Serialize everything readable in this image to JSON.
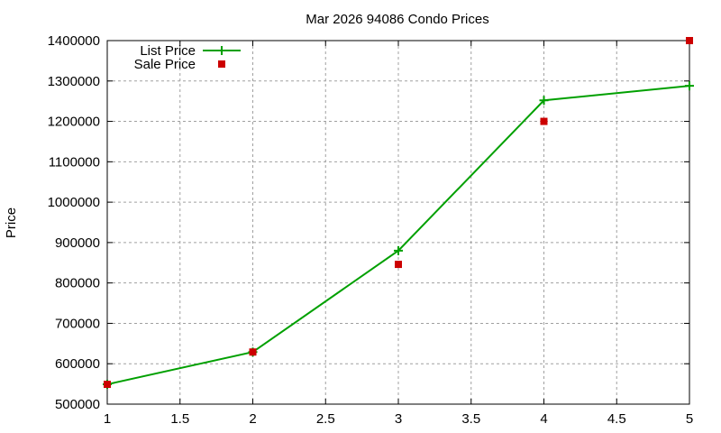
{
  "chart_data": {
    "type": "line",
    "title": "Mar 2026 94086 Condo Prices",
    "xlabel": "",
    "ylabel": "Price",
    "xlim": [
      1,
      5
    ],
    "ylim": [
      500000,
      1400000
    ],
    "grid": true,
    "legend_position": "top-left",
    "x_ticks": [
      "1",
      "1.5",
      "2",
      "2.5",
      "3",
      "3.5",
      "4",
      "4.5",
      "5"
    ],
    "y_ticks": [
      "500000",
      "600000",
      "700000",
      "800000",
      "900000",
      "1000000",
      "1100000",
      "1200000",
      "1300000",
      "1400000"
    ],
    "x": [
      1,
      2,
      3,
      4,
      5
    ],
    "series": [
      {
        "name": "List Price",
        "style": "line+cross",
        "color": "#00a000",
        "values": [
          549000,
          629000,
          880000,
          1252000,
          1288000
        ]
      },
      {
        "name": "Sale Price",
        "style": "square-points",
        "color": "#cc0000",
        "values": [
          549000,
          629000,
          846000,
          1200000,
          1400000
        ]
      }
    ]
  }
}
